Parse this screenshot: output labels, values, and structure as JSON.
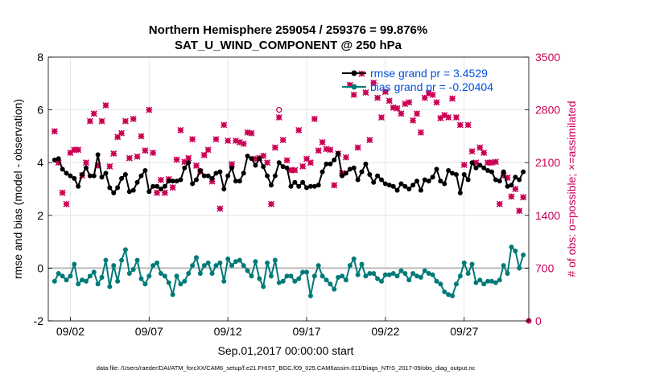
{
  "chart_data": {
    "type": "line",
    "title": "Northern Hemisphere 259054 / 259376 = 99.876%",
    "subtitle": "SAT_U_WIND_COMPONENT @ 250 hPa",
    "xlabel": "Sep.01,2017 00:00:00 start",
    "ylabel": "rmse and bias (model - observation)",
    "y2label": "# of obs: o=possible; ×=assimilated",
    "ylim": [
      -2,
      8
    ],
    "y2lim": [
      0,
      3500
    ],
    "xlim": [
      0.6,
      31.1
    ],
    "yticks": [
      "-2",
      "0",
      "2",
      "4",
      "6",
      "8"
    ],
    "y2ticks": [
      "0",
      "700",
      "1400",
      "2100",
      "2800",
      "3500"
    ],
    "xticks": [
      {
        "x": 2,
        "label": "09/02"
      },
      {
        "x": 7,
        "label": "09/07"
      },
      {
        "x": 12,
        "label": "09/12"
      },
      {
        "x": 17,
        "label": "09/17"
      },
      {
        "x": 22,
        "label": "09/22"
      },
      {
        "x": 27,
        "label": "09/27"
      }
    ],
    "legend": {
      "position": "top-right",
      "rmse_label": "rmse grand pr = 3.4529",
      "bias_label": "bias grand pr = -0.20404"
    },
    "footer": "data file: /Users/raeder/DAI/ATM_forcXX/CAM6_setup/f.e21.FHIST_BGC.f09_025.CAM6assim.011/Diags_NTrS_2017-09/obs_diag_output.nc",
    "colors": {
      "rmse": "#000000",
      "bias": "#007a78",
      "obs": "#cc0055",
      "zero": "#bbbbbb"
    },
    "series": [
      {
        "name": "rmse",
        "x": [
          1.0,
          1.25,
          1.5,
          1.75,
          2.0,
          2.25,
          2.5,
          2.75,
          3.0,
          3.25,
          3.5,
          3.75,
          4.0,
          4.25,
          4.5,
          4.75,
          5.0,
          5.25,
          5.5,
          5.75,
          6.0,
          6.25,
          6.5,
          6.75,
          7.0,
          7.25,
          7.5,
          7.75,
          8.0,
          8.25,
          8.5,
          8.75,
          9.0,
          9.25,
          9.5,
          9.75,
          10.0,
          10.25,
          10.5,
          10.75,
          11.0,
          11.25,
          11.5,
          11.75,
          12.0,
          12.25,
          12.5,
          12.75,
          13.0,
          13.25,
          13.5,
          13.75,
          14.0,
          14.25,
          14.5,
          14.75,
          15.0,
          15.25,
          15.5,
          15.75,
          16.0,
          16.25,
          16.5,
          16.75,
          17.0,
          17.25,
          17.5,
          17.75,
          18.0,
          18.25,
          18.5,
          18.75,
          19.0,
          19.25,
          19.5,
          19.75,
          20.0,
          20.25,
          20.5,
          20.75,
          21.0,
          21.25,
          21.5,
          21.75,
          22.0,
          22.25,
          22.5,
          22.75,
          23.0,
          23.25,
          23.5,
          23.75,
          24.0,
          24.25,
          24.5,
          24.75,
          25.0,
          25.25,
          25.5,
          25.75,
          26.0,
          26.25,
          26.5,
          26.75,
          27.0,
          27.25,
          27.5,
          27.75,
          28.0,
          28.25,
          28.5,
          28.75,
          29.0,
          29.25,
          29.5,
          29.75,
          30.0,
          30.25,
          30.5,
          30.75
        ],
        "values": [
          4.1,
          4.15,
          3.75,
          3.6,
          3.5,
          3.4,
          3.1,
          3.55,
          3.8,
          3.5,
          3.5,
          4.3,
          3.45,
          3.6,
          3.05,
          2.85,
          3.05,
          3.4,
          3.55,
          2.9,
          2.95,
          3.25,
          3.5,
          3.7,
          2.9,
          3.1,
          3.1,
          3.0,
          3.1,
          3.3,
          3.3,
          3.3,
          3.35,
          3.8,
          4.0,
          3.2,
          3.35,
          3.7,
          3.5,
          3.5,
          3.4,
          3.6,
          3.65,
          3.0,
          3.5,
          3.8,
          3.3,
          3.3,
          3.6,
          4.25,
          4.15,
          3.9,
          4.15,
          3.85,
          3.5,
          3.15,
          3.5,
          4.0,
          3.85,
          3.8,
          3.1,
          3.25,
          3.1,
          3.25,
          3.05,
          3.1,
          3.1,
          3.15,
          3.65,
          3.95,
          3.95,
          4.1,
          4.35,
          3.5,
          3.6,
          3.75,
          3.8,
          3.35,
          3.65,
          3.95,
          3.55,
          3.25,
          3.5,
          3.35,
          3.2,
          3.15,
          3.1,
          2.95,
          3.2,
          3.1,
          3.0,
          3.15,
          3.3,
          2.95,
          3.35,
          3.3,
          3.45,
          3.75,
          3.3,
          3.2,
          3.7,
          3.6,
          3.55,
          2.85,
          3.55,
          3.35,
          4.0,
          3.8,
          3.9,
          3.8,
          3.7,
          3.65,
          3.35,
          3.3,
          3.65,
          3.1,
          3.15,
          3.45,
          3.35,
          3.65
        ]
      },
      {
        "name": "bias",
        "x": [
          1.0,
          1.25,
          1.5,
          1.75,
          2.0,
          2.25,
          2.5,
          2.75,
          3.0,
          3.25,
          3.5,
          3.75,
          4.0,
          4.25,
          4.5,
          4.75,
          5.0,
          5.25,
          5.5,
          5.75,
          6.0,
          6.25,
          6.5,
          6.75,
          7.0,
          7.25,
          7.5,
          7.75,
          8.0,
          8.25,
          8.5,
          8.75,
          9.0,
          9.25,
          9.5,
          9.75,
          10.0,
          10.25,
          10.5,
          10.75,
          11.0,
          11.25,
          11.5,
          11.75,
          12.0,
          12.25,
          12.5,
          12.75,
          13.0,
          13.25,
          13.5,
          13.75,
          14.0,
          14.25,
          14.5,
          14.75,
          15.0,
          15.25,
          15.5,
          15.75,
          16.0,
          16.25,
          16.5,
          16.75,
          17.0,
          17.25,
          17.5,
          17.75,
          18.0,
          18.25,
          18.5,
          18.75,
          19.0,
          19.25,
          19.5,
          19.75,
          20.0,
          20.25,
          20.5,
          20.75,
          21.0,
          21.25,
          21.5,
          21.75,
          22.0,
          22.25,
          22.5,
          22.75,
          23.0,
          23.25,
          23.5,
          23.75,
          24.0,
          24.25,
          24.5,
          24.75,
          25.0,
          25.25,
          25.5,
          25.75,
          26.0,
          26.25,
          26.5,
          26.75,
          27.0,
          27.25,
          27.5,
          27.75,
          28.0,
          28.25,
          28.5,
          28.75,
          29.0,
          29.25,
          29.5,
          29.75,
          30.0,
          30.25,
          30.5,
          30.75
        ],
        "values": [
          -0.5,
          -0.2,
          -0.3,
          -0.45,
          -0.3,
          0.15,
          -0.6,
          -0.45,
          -0.5,
          -0.3,
          -0.15,
          -0.6,
          -0.35,
          0.3,
          -0.7,
          0.1,
          -0.5,
          0.3,
          0.7,
          -0.2,
          -0.05,
          0.3,
          -0.4,
          -0.6,
          -0.3,
          0.1,
          0.2,
          -0.2,
          -0.3,
          -0.55,
          -1.0,
          -0.3,
          -0.6,
          -0.5,
          -0.2,
          0.1,
          0.4,
          -0.2,
          0.1,
          0.2,
          -0.2,
          0.1,
          0.2,
          -0.5,
          0.35,
          0.1,
          0.25,
          0.3,
          0.1,
          -0.1,
          -0.3,
          0.25,
          -0.4,
          -0.7,
          0.2,
          -0.3,
          0.3,
          -0.55,
          -0.5,
          -0.3,
          -0.3,
          -0.5,
          -0.4,
          -0.15,
          -0.15,
          -1.05,
          -0.3,
          0.1,
          -0.3,
          -0.45,
          -0.6,
          -0.8,
          -0.35,
          -0.3,
          -0.45,
          0.1,
          0.35,
          -0.25,
          0.15,
          -0.3,
          -0.2,
          -0.2,
          -0.4,
          -0.5,
          -0.25,
          -0.25,
          -0.2,
          -0.3,
          -0.1,
          -0.2,
          -0.45,
          -0.2,
          -0.3,
          -0.35,
          -0.1,
          -0.2,
          -0.25,
          -0.5,
          -0.6,
          -0.9,
          -1.0,
          -1.05,
          -0.6,
          -0.3,
          0.2,
          -0.2,
          0.15,
          -0.55,
          -0.45,
          -0.6,
          -0.5,
          -0.5,
          -0.55,
          -0.45,
          0.1,
          -0.2,
          0.8,
          0.65,
          0.0,
          0.5
        ]
      },
      {
        "name": "obs_assimilated",
        "axis": "y2",
        "x": [
          1.0,
          1.25,
          1.5,
          1.75,
          2.0,
          2.25,
          2.5,
          2.75,
          3.0,
          3.25,
          3.5,
          3.75,
          4.0,
          4.25,
          4.5,
          4.75,
          5.0,
          5.25,
          5.5,
          5.75,
          6.0,
          6.25,
          6.5,
          6.75,
          7.0,
          7.25,
          7.5,
          7.75,
          8.0,
          8.25,
          8.5,
          8.75,
          9.0,
          9.25,
          9.5,
          9.75,
          10.0,
          10.25,
          10.5,
          10.75,
          11.0,
          11.25,
          11.5,
          11.75,
          12.0,
          12.25,
          12.5,
          12.75,
          13.0,
          13.25,
          13.5,
          13.75,
          14.0,
          14.25,
          14.5,
          14.75,
          15.0,
          15.25,
          15.5,
          15.75,
          16.0,
          16.25,
          16.5,
          16.75,
          17.0,
          17.25,
          17.5,
          17.75,
          18.0,
          18.25,
          18.5,
          18.75,
          19.0,
          19.25,
          19.5,
          19.75,
          20.0,
          20.25,
          20.5,
          20.75,
          21.0,
          21.25,
          21.5,
          21.75,
          22.0,
          22.25,
          22.5,
          22.75,
          23.0,
          23.25,
          23.5,
          23.75,
          24.0,
          24.25,
          24.5,
          24.75,
          25.0,
          25.25,
          25.5,
          25.75,
          26.0,
          26.25,
          26.5,
          26.75,
          27.0,
          27.25,
          27.5,
          27.75,
          28.0,
          28.25,
          28.5,
          28.75,
          29.0,
          29.25,
          29.5,
          29.75,
          30.0,
          30.25,
          30.5,
          30.75
        ],
        "values": [
          2515,
          2100,
          1700,
          1550,
          2230,
          2270,
          2270,
          1930,
          2100,
          2650,
          2750,
          2060,
          2650,
          2860,
          2050,
          2220,
          2440,
          2490,
          2650,
          2160,
          2680,
          2180,
          2450,
          2260,
          2800,
          2230,
          1700,
          1870,
          1700,
          1880,
          1770,
          2140,
          2530,
          2110,
          2160,
          2410,
          2060,
          1980,
          2200,
          2270,
          1850,
          2410,
          1490,
          2600,
          2390,
          2080,
          2390,
          2370,
          2350,
          2500,
          2490,
          2150,
          2160,
          2190,
          2100,
          1550,
          2300,
          2700,
          2400,
          2130,
          2000,
          2000,
          2530,
          2050,
          2150,
          2100,
          2680,
          2260,
          2370,
          2280,
          2270,
          1800,
          2220,
          1960,
          2170,
          3130,
          3000,
          2300,
          3280,
          3030,
          2400,
          3160,
          2960,
          2700,
          3040,
          2920,
          2830,
          2820,
          2750,
          2880,
          2900,
          2660,
          2750,
          2500,
          2960,
          3020,
          3000,
          2900,
          2690,
          2730,
          2700,
          2950,
          2700,
          2600,
          2070,
          2600,
          2250,
          2100,
          2300,
          2230,
          2100,
          2100,
          2110,
          1550,
          1930,
          1900,
          1650,
          1750,
          1460,
          1640
        ]
      },
      {
        "name": "obs_possible",
        "axis": "y2",
        "x": [
          15.25
        ],
        "values": [
          2800
        ]
      }
    ]
  }
}
